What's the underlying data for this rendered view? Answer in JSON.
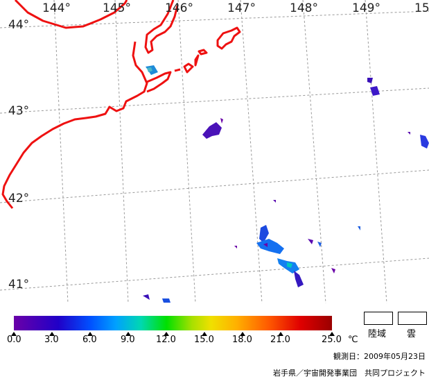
{
  "map": {
    "longitude_labels": [
      "144°",
      "145°",
      "146°",
      "147°",
      "148°",
      "149°",
      "15"
    ],
    "latitude_labels": [
      "44°",
      "43°",
      "42°",
      "41°"
    ]
  },
  "colorbar": {
    "tick_labels": [
      "0.0",
      "3.0",
      "6.0",
      "9.0",
      "12.0",
      "15.0",
      "18.0",
      "21.0",
      "25.0"
    ],
    "unit": "℃",
    "colors": [
      "#6a00a8",
      "#2000c8",
      "#0050ff",
      "#00a0ff",
      "#00d8b0",
      "#00e000",
      "#a8e000",
      "#f0e000",
      "#ffb000",
      "#ff5a00",
      "#e00000",
      "#9a0000"
    ]
  },
  "legend": {
    "land_label": "陸域",
    "cloud_label": "雲"
  },
  "observation_date": "観測日：2009年05月23日",
  "credit": "岩手県／宇宙開発事業団　共同プロジェクト",
  "styles": {
    "coastline_color": "#ee1111",
    "grid_color": "#999999"
  }
}
